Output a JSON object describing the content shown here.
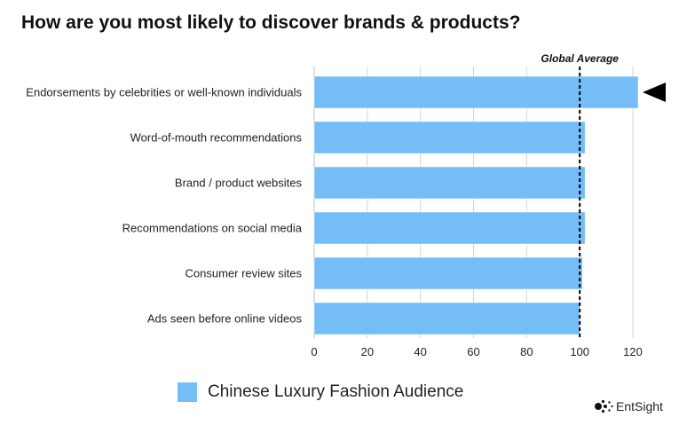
{
  "colors": {
    "bar": "#74bdf7",
    "bar_stroke": "#ffffff",
    "grid": "#d4d4d4",
    "text": "#222222",
    "reference": "#000000"
  },
  "chart_data": {
    "type": "bar",
    "orientation": "horizontal",
    "title": "How are you most likely to discover brands & products?",
    "xlabel": "",
    "ylabel": "",
    "categories": [
      "Endorsements by celebrities or well-known individuals",
      "Word-of-mouth recommendations",
      "Brand / product websites",
      "Recommendations  on social media",
      "Consumer review sites",
      "Ads seen before online videos"
    ],
    "series": [
      {
        "name": "Chinese Luxury Fashion Audience",
        "values": [
          122,
          102,
          102,
          102,
          101,
          100
        ]
      }
    ],
    "xlim": [
      0,
      120
    ],
    "xticks": [
      0,
      20,
      40,
      60,
      80,
      100,
      120
    ],
    "grid": "vertical",
    "reference_line": {
      "label": "Global Average",
      "value": 100,
      "style": "dashed"
    },
    "highlight_marker": {
      "category": "Endorsements by celebrities or well-known individuals",
      "icon": "left-pointing-triangle-icon"
    },
    "legend_position": "bottom-left"
  },
  "brand": {
    "name": "EntSight",
    "icon": "entsight-logo-dots-icon"
  }
}
